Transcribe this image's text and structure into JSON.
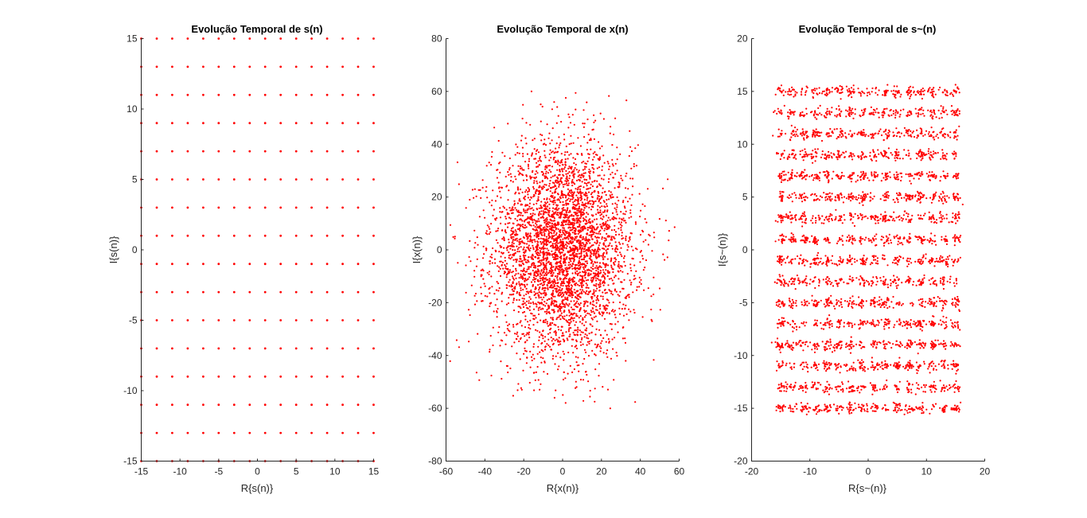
{
  "chart_data": [
    {
      "type": "scatter",
      "title": "Evolução Temporal de s(n)",
      "xlabel": "R{s(n)}",
      "ylabel": "I{s(n)}",
      "xlim": [
        -15,
        15
      ],
      "ylim": [
        -15,
        15
      ],
      "xticks": [
        -15,
        -10,
        -5,
        0,
        5,
        10,
        15
      ],
      "yticks": [
        -15,
        -10,
        -5,
        0,
        5,
        10,
        15
      ],
      "grid": false,
      "marker_color": "#ff0000",
      "points": {
        "description_grid": "16-QAM-like constellation: all combinations of odd levels",
        "x_levels": [
          -15,
          -13,
          -11,
          -9,
          -7,
          -5,
          -3,
          -1,
          1,
          3,
          5,
          7,
          9,
          11,
          13,
          15
        ],
        "y_levels": [
          -15,
          -13,
          -11,
          -9,
          -7,
          -5,
          -3,
          -1,
          1,
          3,
          5,
          7,
          9,
          11,
          13,
          15
        ]
      }
    },
    {
      "type": "scatter",
      "title": "Evolução Temporal de x(n)",
      "xlabel": "R{x(n)}",
      "ylabel": "I{x(n)}",
      "xlim": [
        -60,
        60
      ],
      "ylim": [
        -80,
        80
      ],
      "xticks": [
        -60,
        -40,
        -20,
        0,
        20,
        40,
        60
      ],
      "yticks": [
        -80,
        -60,
        -40,
        -20,
        0,
        20,
        40,
        60,
        80
      ],
      "grid": false,
      "marker_color": "#ff0000",
      "points": {
        "distribution": "gaussian",
        "count": 4096,
        "center": [
          0,
          0
        ],
        "std": [
          18,
          20
        ],
        "x_range": [
          -58,
          58
        ],
        "y_range": [
          -62,
          60
        ]
      }
    },
    {
      "type": "scatter",
      "title": "Evolução Temporal de s~(n)",
      "xlabel": "R{s~(n)}",
      "ylabel": "I{s~(n)}",
      "xlim": [
        -20,
        20
      ],
      "ylim": [
        -20,
        20
      ],
      "xticks": [
        -20,
        -10,
        0,
        10,
        20
      ],
      "yticks": [
        -20,
        -15,
        -10,
        -5,
        0,
        5,
        10,
        15,
        20
      ],
      "grid": false,
      "marker_color": "#ff0000",
      "points": {
        "distribution": "noisy constellation",
        "x_levels": [
          -15,
          -13,
          -11,
          -9,
          -7,
          -5,
          -3,
          -1,
          1,
          3,
          5,
          7,
          9,
          11,
          13,
          15
        ],
        "y_levels": [
          -15,
          -13,
          -11,
          -9,
          -7,
          -5,
          -3,
          -1,
          1,
          3,
          5,
          7,
          9,
          11,
          13,
          15
        ],
        "noise_std": 0.45,
        "count": 4096
      }
    }
  ]
}
